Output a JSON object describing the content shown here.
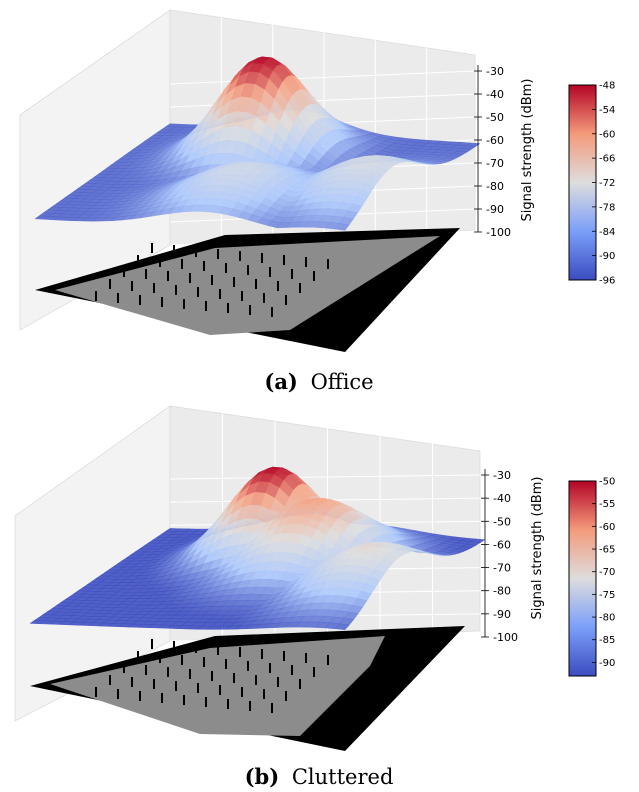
{
  "chart_data": [
    {
      "type": "surface",
      "caption_label": "(a)",
      "caption_text": "Office",
      "zlabel": "Signal strength (dBm)",
      "zticks": [
        "-30",
        "-40",
        "-50",
        "-60",
        "-70",
        "-80",
        "-90",
        "-100"
      ],
      "zlim": [
        -100,
        -30
      ],
      "colorbar_ticks": [
        "-48",
        "-54",
        "-60",
        "-66",
        "-72",
        "-78",
        "-84",
        "-90",
        "-96"
      ],
      "colorbar_range": [
        -96,
        -48
      ],
      "colormap": [
        "#3b4cc0",
        "#aac7fd",
        "#dddddd",
        "#f7a889",
        "#b40426"
      ],
      "peak_value": -48,
      "surface_peaks": [
        {
          "x": 0.42,
          "y": 0.72,
          "dbm": -48
        },
        {
          "x": 0.92,
          "y": 0.35,
          "dbm": -74
        },
        {
          "x": 0.55,
          "y": 0.25,
          "dbm": -76
        }
      ],
      "floor_colors": {
        "walls": "#000000",
        "floor": "#8c8c8c"
      }
    },
    {
      "type": "surface",
      "caption_label": "(b)",
      "caption_text": "Cluttered",
      "zlabel": "Signal strength (dBm)",
      "zticks": [
        "-30",
        "-40",
        "-50",
        "-60",
        "-70",
        "-80",
        "-90",
        "-100"
      ],
      "zlim": [
        -100,
        -30
      ],
      "colorbar_ticks": [
        "-50",
        "-55",
        "-60",
        "-65",
        "-70",
        "-75",
        "-80",
        "-85",
        "-90"
      ],
      "colorbar_range": [
        -93,
        -50
      ],
      "colormap": [
        "#3b4cc0",
        "#aac7fd",
        "#dddddd",
        "#f7a889",
        "#b40426"
      ],
      "peak_value": -50,
      "surface_peaks": [
        {
          "x": 0.45,
          "y": 0.72,
          "dbm": -50
        },
        {
          "x": 0.62,
          "y": 0.62,
          "dbm": -60
        },
        {
          "x": 0.9,
          "y": 0.4,
          "dbm": -70
        }
      ],
      "floor_colors": {
        "walls": "#000000",
        "floor": "#8c8c8c"
      }
    }
  ]
}
